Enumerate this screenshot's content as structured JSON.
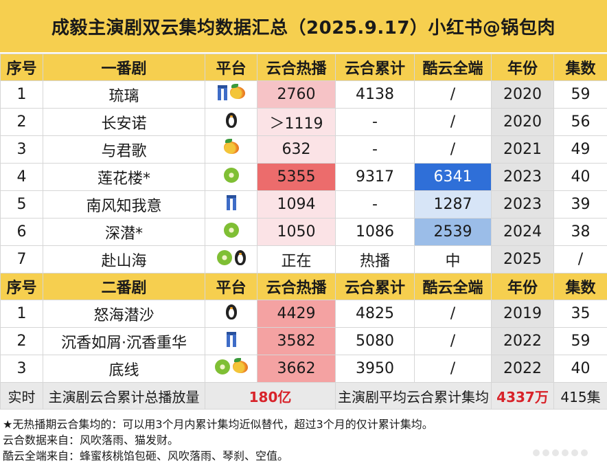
{
  "title": "成毅主演剧双云集均数据汇总（2025.9.17）小红书@锅包肉",
  "headers_main": [
    "序号",
    "一番剧",
    "平台",
    "云合热播",
    "云合累计",
    "酷云全端",
    "年份",
    "集数"
  ],
  "headers_second": [
    "序号",
    "二番剧",
    "平台",
    "云合热播",
    "云合累计",
    "酷云全端",
    "年份",
    "集数"
  ],
  "main_rows": [
    {
      "no": "1",
      "name": "琉璃",
      "platform_icons": [
        "jeans-icon",
        "mango-icon"
      ],
      "yunhe_hot": "2760",
      "yunhe_total": "4138",
      "kuyun": "/",
      "year": "2020",
      "episodes": "59"
    },
    {
      "no": "2",
      "name": "长安诺",
      "platform_icons": [
        "penguin-icon"
      ],
      "yunhe_hot": "＞1119",
      "yunhe_total": "-",
      "kuyun": "/",
      "year": "2020",
      "episodes": "56"
    },
    {
      "no": "3",
      "name": "与君歌",
      "platform_icons": [
        "mango-icon"
      ],
      "yunhe_hot": "632",
      "yunhe_total": "-",
      "kuyun": "/",
      "year": "2021",
      "episodes": "49"
    },
    {
      "no": "4",
      "name": "莲花楼*",
      "platform_icons": [
        "kiwi-icon"
      ],
      "yunhe_hot": "5355",
      "yunhe_total": "9317",
      "kuyun": "6341",
      "year": "2023",
      "episodes": "40"
    },
    {
      "no": "5",
      "name": "南风知我意",
      "platform_icons": [
        "jeans-icon"
      ],
      "yunhe_hot": "1094",
      "yunhe_total": "-",
      "kuyun": "1287",
      "year": "2023",
      "episodes": "39"
    },
    {
      "no": "6",
      "name": "深潜*",
      "platform_icons": [
        "kiwi-icon"
      ],
      "yunhe_hot": "1050",
      "yunhe_total": "1086",
      "kuyun": "2539",
      "year": "2024",
      "episodes": "38"
    },
    {
      "no": "7",
      "name": "赴山海",
      "platform_icons": [
        "kiwi-icon",
        "penguin-icon"
      ],
      "yunhe_hot": "正在",
      "yunhe_total": "热播",
      "kuyun": "中",
      "year": "2025",
      "episodes": "/"
    }
  ],
  "second_rows": [
    {
      "no": "1",
      "name": "怒海潜沙",
      "platform_icons": [
        "penguin-icon"
      ],
      "yunhe_hot": "4429",
      "yunhe_total": "4825",
      "kuyun": "/",
      "year": "2019",
      "episodes": "35"
    },
    {
      "no": "2",
      "name": "沉香如屑·沉香重华",
      "platform_icons": [
        "jeans-icon"
      ],
      "yunhe_hot": "3582",
      "yunhe_total": "5080",
      "kuyun": "/",
      "year": "2022",
      "episodes": "59"
    },
    {
      "no": "3",
      "name": "底线",
      "platform_icons": [
        "kiwi-icon",
        "mango-icon"
      ],
      "yunhe_hot": "3662",
      "yunhe_total": "3950",
      "kuyun": "/",
      "year": "2022",
      "episodes": "40"
    }
  ],
  "footer": {
    "label": "实时",
    "total_label": "主演剧云合累计总播放量",
    "total_value": "180亿",
    "avg_label": "主演剧平均云合累计集均",
    "avg_value": "4337万",
    "episodes_total": "415集"
  },
  "notes": [
    "★无热播期云合集均的：可以用3个月内累计集均近似替代，超过3个月的仅计累计集均。",
    "云合数据来自：风吹落雨、猫发财。",
    "酷云全端来自：蜂蜜核桃馅包砸、风吹落雨、琴刹、空值。"
  ],
  "colors": {
    "header_bg": "#f6cf4f",
    "hot_high": "#ec6c6c",
    "kuyun_high": "#2f6fd8",
    "highlight_red": "#d8232a"
  }
}
